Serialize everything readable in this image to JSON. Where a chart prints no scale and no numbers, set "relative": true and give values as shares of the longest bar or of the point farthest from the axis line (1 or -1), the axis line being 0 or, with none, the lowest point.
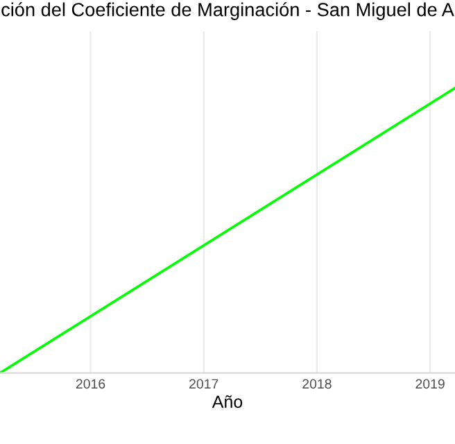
{
  "chart_data": {
    "type": "line",
    "title": "ción del Coeficiente de Marginación - San Miguel de A",
    "xlabel": "Año",
    "x": [
      2015.2,
      2019.22
    ],
    "relative": true,
    "series": [
      {
        "color": "#00ff00",
        "values": [
          0,
          1
        ]
      }
    ],
    "xlim": [
      2015.2,
      2019.22
    ],
    "xticks": [
      2016,
      2017,
      2018,
      2019
    ],
    "tick_labels": "x",
    "grid": true
  }
}
